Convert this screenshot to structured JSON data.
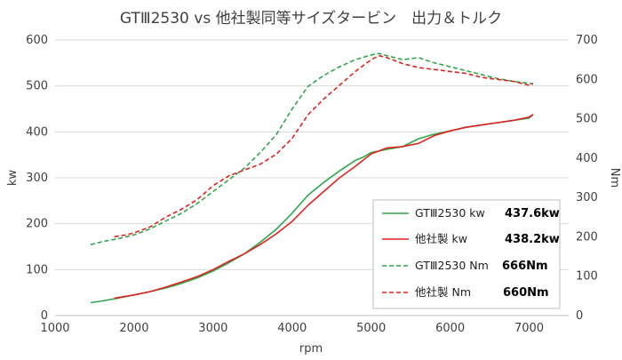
{
  "chart_data": {
    "type": "line",
    "title": "GTⅢ2530 vs 他社製同等サイズタービン　出力＆トルク",
    "xlabel": "rpm",
    "ylabel_left": "kw",
    "ylabel_right": "Nm",
    "xlim": [
      1000,
      7500
    ],
    "ylim_left": [
      0,
      600
    ],
    "ylim_right": [
      0,
      700
    ],
    "x_ticks": [
      "1000",
      "2000",
      "3000",
      "4000",
      "5000",
      "6000",
      "7000"
    ],
    "y_left_ticks": [
      "0",
      "100",
      "200",
      "300",
      "400",
      "500",
      "600"
    ],
    "y_right_ticks": [
      "0",
      "100",
      "200",
      "300",
      "400",
      "500",
      "600",
      "700"
    ],
    "grid": true,
    "legend_position": "right-middle",
    "series": [
      {
        "name": "GTⅢ2530 kw",
        "value_label": "437.6kw",
        "axis": "left",
        "style": "solid",
        "color": "#2EA84A",
        "x": [
          1450,
          1600,
          1800,
          2000,
          2200,
          2400,
          2600,
          2800,
          3000,
          3200,
          3400,
          3600,
          3800,
          4000,
          4200,
          4400,
          4600,
          4800,
          4900,
          5000,
          5200,
          5400,
          5600,
          5800,
          6000,
          6200,
          6400,
          6600,
          6800,
          7000,
          7050
        ],
        "values": [
          28,
          32,
          38,
          45,
          52,
          60,
          70,
          82,
          97,
          115,
          135,
          160,
          188,
          223,
          262,
          290,
          315,
          338,
          345,
          355,
          362,
          368,
          385,
          395,
          402,
          410,
          415,
          420,
          425,
          430,
          437.6
        ]
      },
      {
        "name": "他社製 kw",
        "value_label": "438.2kw",
        "axis": "left",
        "style": "solid",
        "color": "#E0231F",
        "x": [
          1750,
          1900,
          2000,
          2200,
          2400,
          2600,
          2800,
          3000,
          3200,
          3400,
          3600,
          3800,
          4000,
          4200,
          4400,
          4600,
          4800,
          5000,
          5200,
          5400,
          5600,
          5800,
          6000,
          6200,
          6400,
          6600,
          6800,
          7000,
          7050
        ],
        "values": [
          38,
          42,
          45,
          52,
          62,
          73,
          85,
          100,
          118,
          135,
          155,
          178,
          205,
          240,
          270,
          300,
          325,
          352,
          365,
          368,
          375,
          392,
          402,
          410,
          415,
          420,
          425,
          432,
          438.2
        ]
      },
      {
        "name": "GTⅢ2530 Nm",
        "value_label": "666Nm",
        "axis": "right",
        "style": "dashed",
        "color": "#2EA84A",
        "x": [
          1450,
          1600,
          1800,
          2000,
          2200,
          2400,
          2600,
          2800,
          3000,
          3200,
          3400,
          3600,
          3800,
          4000,
          4200,
          4400,
          4600,
          4800,
          5000,
          5100,
          5200,
          5400,
          5600,
          5800,
          6000,
          6200,
          6400,
          6600,
          6800,
          7000,
          7050
        ],
        "values": [
          180,
          188,
          195,
          205,
          220,
          240,
          260,
          285,
          315,
          345,
          375,
          415,
          460,
          525,
          582,
          610,
          632,
          650,
          662,
          666,
          660,
          650,
          655,
          642,
          632,
          622,
          612,
          602,
          595,
          590,
          588
        ]
      },
      {
        "name": "他社製 Nm",
        "value_label": "660Nm",
        "axis": "right",
        "style": "dashed",
        "color": "#E0231F",
        "x": [
          1750,
          1900,
          2000,
          2200,
          2400,
          2600,
          2800,
          3000,
          3200,
          3400,
          3600,
          3800,
          4000,
          4200,
          4400,
          4600,
          4800,
          5000,
          5100,
          5200,
          5400,
          5600,
          5800,
          6000,
          6200,
          6400,
          6600,
          6800,
          7000,
          7050
        ],
        "values": [
          200,
          205,
          210,
          225,
          250,
          270,
          295,
          330,
          355,
          370,
          385,
          410,
          450,
          510,
          550,
          585,
          620,
          650,
          660,
          655,
          640,
          630,
          625,
          620,
          615,
          605,
          600,
          595,
          585,
          590
        ]
      }
    ]
  }
}
